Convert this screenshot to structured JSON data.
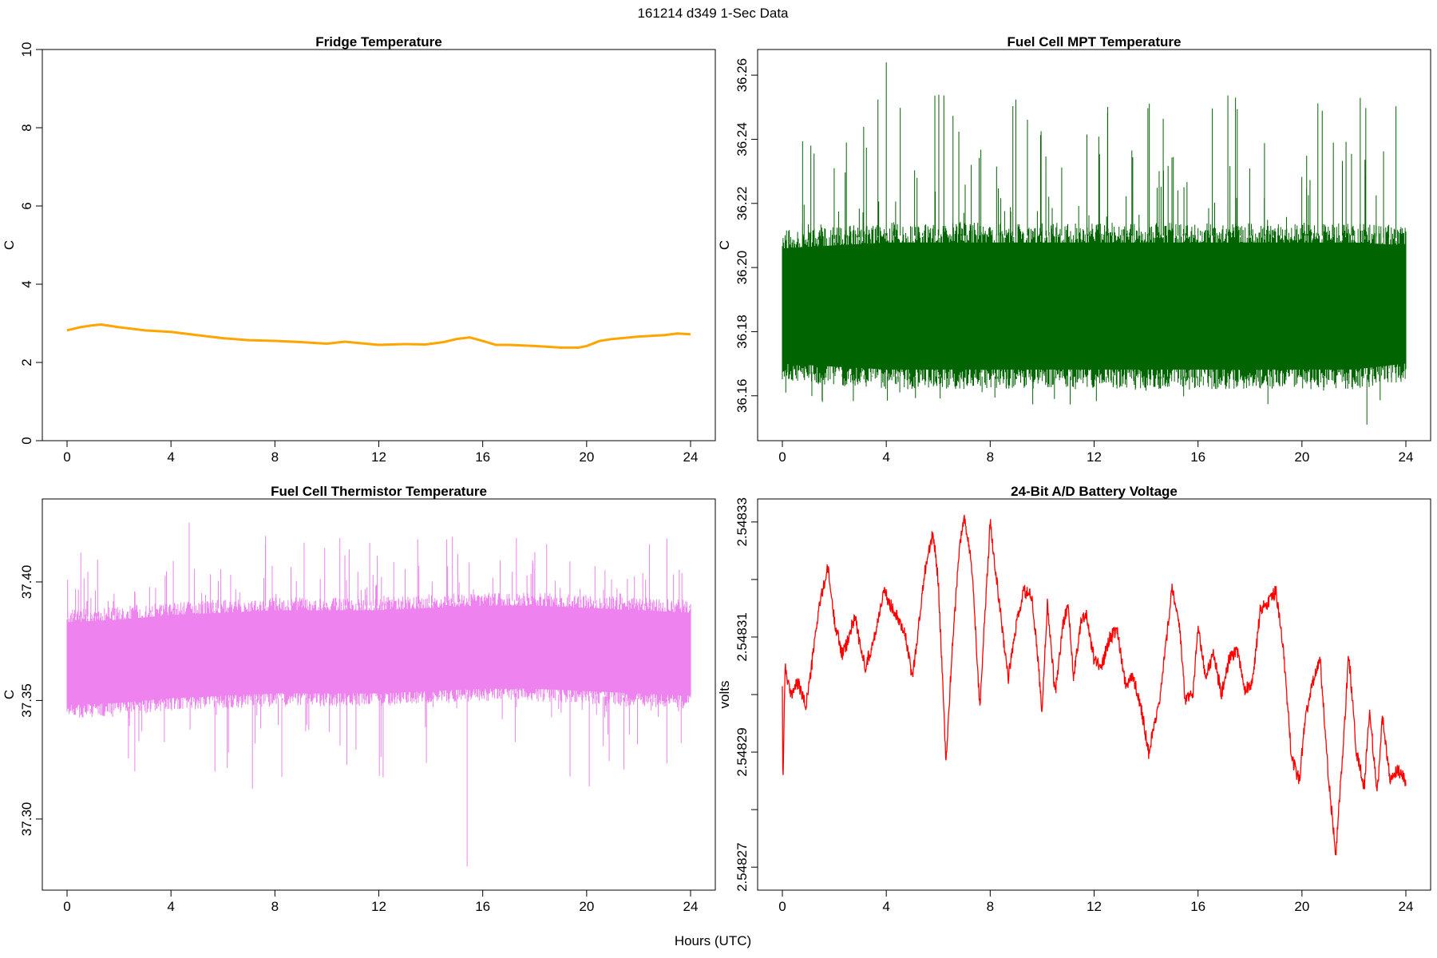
{
  "figure": {
    "supertitle": "161214   d349   1-Sec Data",
    "xlabel": "Hours (UTC)"
  },
  "chart_data": [
    {
      "type": "line",
      "title": "Fridge Temperature",
      "ylabel": "C",
      "xlabel": "Hours (UTC)",
      "xlim": [
        0,
        24
      ],
      "ylim": [
        0,
        10
      ],
      "xticks": [
        0,
        4,
        8,
        12,
        16,
        20,
        24
      ],
      "xtick_labels": [
        "0",
        "4",
        "8",
        "12",
        "16",
        "20",
        "24"
      ],
      "yticks": [
        0,
        2,
        4,
        6,
        8,
        10
      ],
      "ytick_labels": [
        "0",
        "2",
        "4",
        "6",
        "8",
        "10"
      ],
      "color": "#FFA500",
      "series": [
        {
          "name": "Fridge Temperature",
          "x": [
            0,
            0.5,
            1,
            1.3,
            2,
            3,
            4,
            5,
            6,
            7,
            8,
            9,
            10,
            10.7,
            11,
            12,
            13,
            13.8,
            14.5,
            15,
            15.5,
            16,
            16.5,
            17,
            18,
            19,
            19.7,
            20,
            20.5,
            21,
            22,
            23,
            23.5,
            24
          ],
          "y": [
            2.82,
            2.9,
            2.95,
            2.97,
            2.9,
            2.82,
            2.78,
            2.7,
            2.62,
            2.57,
            2.55,
            2.52,
            2.48,
            2.53,
            2.51,
            2.45,
            2.47,
            2.46,
            2.52,
            2.6,
            2.64,
            2.55,
            2.45,
            2.45,
            2.42,
            2.38,
            2.38,
            2.42,
            2.55,
            2.6,
            2.66,
            2.7,
            2.74,
            2.72
          ]
        }
      ]
    },
    {
      "type": "line",
      "title": "Fuel Cell MPT Temperature",
      "ylabel": "C",
      "xlabel": "Hours (UTC)",
      "xlim": [
        0,
        24
      ],
      "ylim": [
        36.146,
        36.268
      ],
      "xticks": [
        0,
        4,
        8,
        12,
        16,
        20,
        24
      ],
      "xtick_labels": [
        "0",
        "4",
        "8",
        "12",
        "16",
        "20",
        "24"
      ],
      "yticks": [
        36.16,
        36.18,
        36.2,
        36.22,
        36.24,
        36.26
      ],
      "ytick_labels": [
        "36.16",
        "36.18",
        "36.20",
        "36.22",
        "36.24",
        "36.26"
      ],
      "color": "#006400",
      "series": [
        {
          "name": "Fuel Cell MPT Temperature",
          "x": [
            0,
            2,
            4,
            6,
            8,
            10,
            12,
            14,
            16,
            18,
            20,
            22,
            24
          ],
          "y_mean": [
            36.188,
            36.188,
            36.188,
            36.188,
            36.188,
            36.188,
            36.188,
            36.188,
            36.188,
            36.188,
            36.188,
            36.188,
            36.188
          ],
          "y_dense_min": [
            36.168,
            36.167,
            36.166,
            36.166,
            36.166,
            36.166,
            36.166,
            36.166,
            36.166,
            36.166,
            36.166,
            36.166,
            36.168
          ],
          "y_dense_max": [
            36.208,
            36.209,
            36.21,
            36.21,
            36.21,
            36.21,
            36.21,
            36.21,
            36.21,
            36.21,
            36.21,
            36.21,
            36.209
          ],
          "spike_max": 36.264,
          "spike_min": 36.151
        }
      ]
    },
    {
      "type": "line",
      "title": "Fuel Cell Thermistor Temperature",
      "ylabel": "C",
      "xlabel": "Hours (UTC)",
      "xlim": [
        0,
        24
      ],
      "ylim": [
        37.27,
        37.435
      ],
      "xticks": [
        0,
        4,
        8,
        12,
        16,
        20,
        24
      ],
      "xtick_labels": [
        "0",
        "4",
        "8",
        "12",
        "16",
        "20",
        "24"
      ],
      "yticks": [
        37.3,
        37.35,
        37.4
      ],
      "ytick_labels": [
        "37.30",
        "37.35",
        "37.40"
      ],
      "color": "#EE82EE",
      "series": [
        {
          "name": "Fuel Cell Thermistor Temperature",
          "x": [
            0,
            2,
            4,
            6,
            8,
            10,
            12,
            14,
            16,
            18,
            20,
            22,
            24
          ],
          "y_mean": [
            37.365,
            37.366,
            37.368,
            37.369,
            37.37,
            37.37,
            37.37,
            37.371,
            37.372,
            37.372,
            37.371,
            37.37,
            37.369
          ],
          "y_dense_min": [
            37.346,
            37.347,
            37.349,
            37.35,
            37.351,
            37.351,
            37.351,
            37.352,
            37.353,
            37.353,
            37.352,
            37.351,
            37.35
          ],
          "y_dense_max": [
            37.385,
            37.386,
            37.388,
            37.389,
            37.39,
            37.39,
            37.39,
            37.391,
            37.392,
            37.392,
            37.391,
            37.39,
            37.389
          ],
          "spike_max": 37.425,
          "spike_min": 37.28
        }
      ]
    },
    {
      "type": "line",
      "title": "24-Bit A/D Battery Voltage",
      "ylabel": "volts",
      "xlabel": "Hours (UTC)",
      "xlim": [
        0,
        24
      ],
      "ylim": [
        2.548266,
        2.548334
      ],
      "xticks": [
        0,
        4,
        8,
        12,
        16,
        20,
        24
      ],
      "xtick_labels": [
        "0",
        "4",
        "8",
        "12",
        "16",
        "20",
        "24"
      ],
      "yticks": [
        2.54827,
        2.54828,
        2.54829,
        2.5483,
        2.54831,
        2.54832,
        2.54833
      ],
      "ytick_labels": [
        "2.54827",
        "",
        "2.54829",
        "",
        "2.54831",
        "",
        "2.54833"
      ],
      "color": "#FF0000",
      "series": [
        {
          "name": "24-Bit A/D Battery Voltage",
          "x": [
            0,
            0.02,
            0.1,
            0.3,
            0.6,
            0.9,
            1.1,
            1.4,
            1.75,
            2.0,
            2.3,
            2.5,
            2.8,
            3.0,
            3.2,
            3.5,
            3.9,
            4.1,
            4.4,
            4.7,
            5.0,
            5.2,
            5.5,
            5.8,
            6.0,
            6.3,
            6.5,
            6.8,
            7.0,
            7.3,
            7.6,
            8.0,
            8.2,
            8.5,
            8.7,
            9.0,
            9.3,
            9.6,
            9.8,
            10.0,
            10.2,
            10.5,
            10.8,
            11.0,
            11.2,
            11.5,
            11.7,
            12.0,
            12.3,
            12.6,
            12.9,
            13.2,
            13.5,
            13.8,
            14.1,
            14.5,
            14.8,
            15.0,
            15.3,
            15.5,
            15.8,
            16.0,
            16.3,
            16.6,
            16.9,
            17.2,
            17.5,
            17.8,
            18.1,
            18.4,
            18.7,
            19.0,
            19.3,
            19.6,
            19.9,
            20.1,
            20.4,
            20.7,
            21.0,
            21.3,
            21.6,
            21.8,
            22.1,
            22.4,
            22.6,
            22.9,
            23.1,
            23.4,
            23.7,
            24.0
          ],
          "y": [
            2.548302,
            2.548283,
            2.548305,
            2.5483,
            2.548302,
            2.548298,
            2.548304,
            2.548315,
            2.548322,
            2.548313,
            2.548307,
            2.548309,
            2.548314,
            2.548308,
            2.548305,
            2.548309,
            2.548318,
            2.548316,
            2.548314,
            2.548311,
            2.548303,
            2.54831,
            2.548322,
            2.548328,
            2.54832,
            2.548288,
            2.548305,
            2.548325,
            2.548331,
            2.548322,
            2.548298,
            2.54833,
            2.548322,
            2.54831,
            2.548303,
            2.548312,
            2.548318,
            2.548317,
            2.548308,
            2.548297,
            2.548316,
            2.5483,
            2.548312,
            2.548316,
            2.548303,
            2.548313,
            2.548314,
            2.548306,
            2.548305,
            2.54831,
            2.548311,
            2.548302,
            2.548303,
            2.548298,
            2.54829,
            2.548298,
            2.54831,
            2.548319,
            2.548311,
            2.548299,
            2.5483,
            2.548312,
            2.548303,
            2.548307,
            2.5483,
            2.548306,
            2.548308,
            2.548301,
            2.548302,
            2.548315,
            2.548316,
            2.548318,
            2.548307,
            2.548289,
            2.548285,
            2.548295,
            2.548302,
            2.548306,
            2.548287,
            2.548272,
            2.548292,
            2.548307,
            2.54829,
            2.548284,
            2.548297,
            2.548283,
            2.548296,
            2.548285,
            2.548287,
            2.548285
          ]
        }
      ]
    }
  ]
}
